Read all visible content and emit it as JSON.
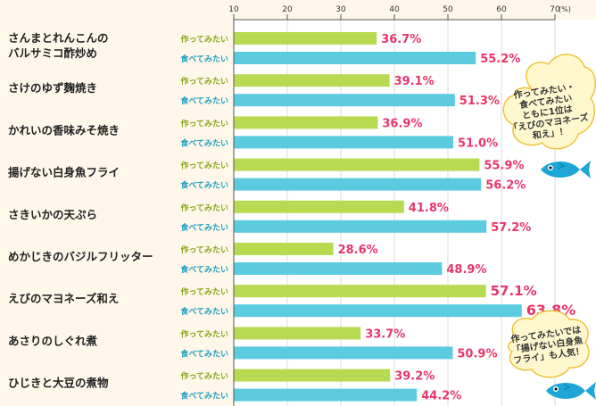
{
  "chart_data": {
    "type": "bar",
    "orientation": "horizontal",
    "x_unit": "(%)",
    "ticks": [
      10,
      20,
      30,
      40,
      50,
      60,
      70
    ],
    "xlim": [
      10,
      70
    ],
    "grid": true,
    "series_labels": {
      "make": "作ってみたい",
      "eat": "食べてみたい"
    },
    "colors": {
      "make": "#b8da53",
      "eat": "#5ccbe0",
      "value_text": "#e8366a",
      "make_label": "#8aa51d",
      "eat_label": "#23a0c0"
    },
    "categories": [
      {
        "name": [
          "さんまとれんこんの",
          "バルサミコ酢炒め"
        ],
        "make": 36.7,
        "eat": 55.2,
        "make_label": "36.7%",
        "eat_label": "55.2%"
      },
      {
        "name": [
          "さけのゆず麹焼き"
        ],
        "make": 39.1,
        "eat": 51.3,
        "make_label": "39.1%",
        "eat_label": "51.3%"
      },
      {
        "name": [
          "かれいの香味みそ焼き"
        ],
        "make": 36.9,
        "eat": 51.0,
        "make_label": "36.9%",
        "eat_label": "51.0%"
      },
      {
        "name": [
          "揚げない白身魚フライ"
        ],
        "make": 55.9,
        "eat": 56.2,
        "make_label": "55.9%",
        "eat_label": "56.2%"
      },
      {
        "name": [
          "さきいかの天ぷら"
        ],
        "make": 41.8,
        "eat": 57.2,
        "make_label": "41.8%",
        "eat_label": "57.2%"
      },
      {
        "name": [
          "めかじきのバジルフリッター"
        ],
        "make": 28.6,
        "eat": 48.9,
        "make_label": "28.6%",
        "eat_label": "48.9%"
      },
      {
        "name": [
          "えびのマヨネーズ和え"
        ],
        "make": 57.1,
        "eat": 63.8,
        "make_label": "57.1%",
        "eat_label": "63.8%",
        "emphasis": true
      },
      {
        "name": [
          "あさりのしぐれ煮"
        ],
        "make": 33.7,
        "eat": 50.9,
        "make_label": "33.7%",
        "eat_label": "50.9%"
      },
      {
        "name": [
          "ひじきと大豆の煮物"
        ],
        "make": 39.2,
        "eat": 44.2,
        "make_label": "39.2%",
        "eat_label": "44.2%"
      }
    ],
    "annotations": [
      {
        "id": "callout-top",
        "lines": [
          "作ってみたい・",
          "食べてみたい",
          "ともに1位は",
          "「えびのマヨネーズ",
          "和え」！"
        ]
      },
      {
        "id": "callout-bottom",
        "lines": [
          "作ってみたいでは",
          "「揚げない白身魚",
          "フライ」も人気！"
        ]
      }
    ]
  }
}
